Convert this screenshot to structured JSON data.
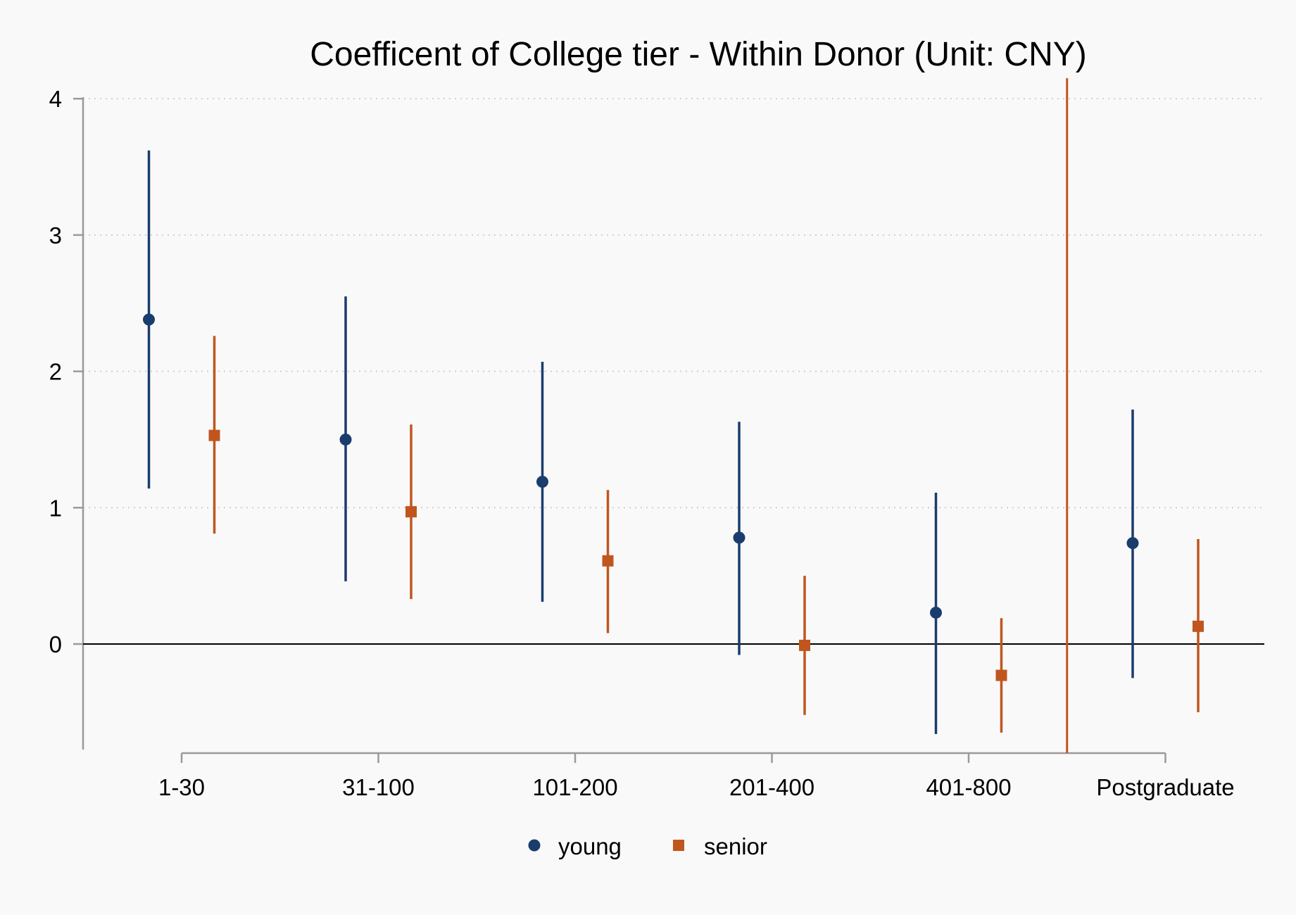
{
  "chart_data": {
    "type": "scatter",
    "title": "Coefficent of College tier - Within Donor (Unit: CNY)",
    "xlabel": "",
    "ylabel": "",
    "categories": [
      "1-30",
      "31-100",
      "101-200",
      "201-400",
      "401-800",
      "Postgraduate"
    ],
    "y_ticks": [
      "0",
      "1",
      "2",
      "3",
      "4"
    ],
    "ylim": [
      -0.8,
      4.15
    ],
    "grid": "horizontal dotted",
    "reference_line": 0,
    "legend_position": "bottom",
    "series": [
      {
        "name": "young",
        "marker": "circle",
        "color": "#1a3d6e",
        "points": [
          {
            "category": "1-30",
            "estimate": 2.38,
            "low": 1.14,
            "high": 3.62
          },
          {
            "category": "31-100",
            "estimate": 1.5,
            "low": 0.46,
            "high": 2.55
          },
          {
            "category": "101-200",
            "estimate": 1.19,
            "low": 0.31,
            "high": 2.07
          },
          {
            "category": "201-400",
            "estimate": 0.78,
            "low": -0.08,
            "high": 1.63
          },
          {
            "category": "401-800",
            "estimate": 0.23,
            "low": -0.66,
            "high": 1.11
          },
          {
            "category": "Postgraduate",
            "estimate": 0.74,
            "low": -0.25,
            "high": 1.72
          }
        ]
      },
      {
        "name": "senior",
        "marker": "square",
        "color": "#c0561e",
        "points": [
          {
            "category": "1-30",
            "estimate": 1.53,
            "low": 0.81,
            "high": 2.26
          },
          {
            "category": "31-100",
            "estimate": 0.97,
            "low": 0.33,
            "high": 1.61
          },
          {
            "category": "101-200",
            "estimate": 0.61,
            "low": 0.08,
            "high": 1.13
          },
          {
            "category": "201-400",
            "estimate": -0.01,
            "low": -0.52,
            "high": 0.5
          },
          {
            "category": "401-800",
            "estimate": -0.23,
            "low": -0.65,
            "high": 0.19
          },
          {
            "category": "Postgraduate",
            "estimate": 0.13,
            "low": -0.5,
            "high": 0.77
          }
        ]
      }
    ],
    "extra_interval": {
      "series": "senior",
      "position": "between 401-800 and Postgraduate",
      "low": -0.8,
      "high": 4.15
    }
  }
}
